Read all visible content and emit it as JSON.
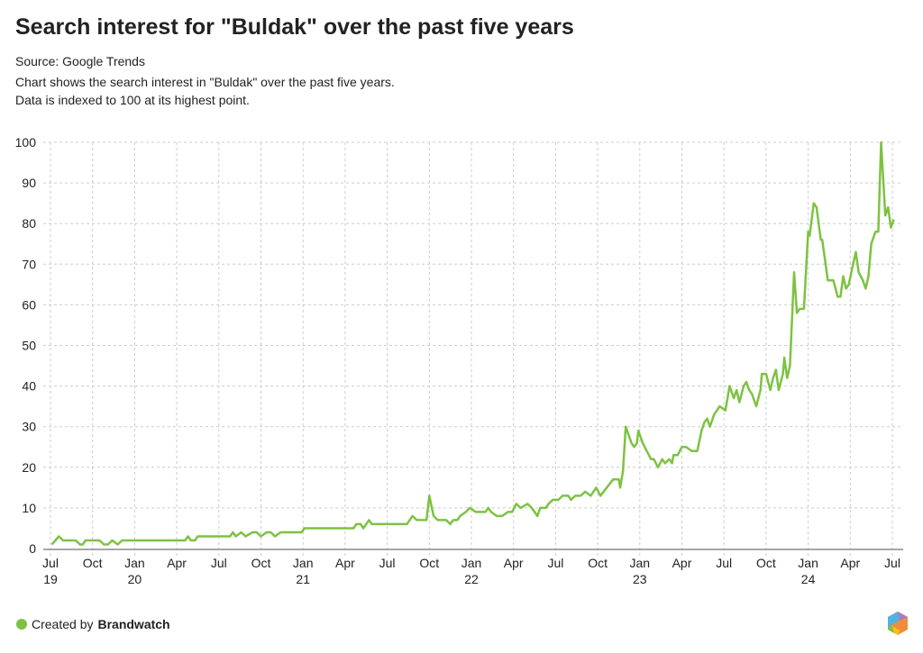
{
  "title": "Search interest for \"Buldak\" over the past five years",
  "source": "Source: Google Trends",
  "description_line1": "Chart shows the search interest in \"Buldak\" over the past five years.",
  "description_line2": "Data is indexed to 100 at its highest point.",
  "footer": {
    "created_by": "Created by",
    "brand": "Brandwatch"
  },
  "colors": {
    "line": "#7dc242",
    "grid": "#cccccc"
  },
  "chart_data": {
    "type": "line",
    "title": "Search interest for \"Buldak\" over the past five years",
    "xlabel": "",
    "ylabel": "",
    "x_unit": "months since Jul 2019",
    "xlim": [
      0,
      60
    ],
    "ylim": [
      0,
      100
    ],
    "grid": true,
    "yticks": [
      0,
      10,
      20,
      30,
      40,
      50,
      60,
      70,
      80,
      90,
      100
    ],
    "xticks": [
      {
        "m": 0,
        "label": "Jul",
        "year": "19"
      },
      {
        "m": 3,
        "label": "Oct"
      },
      {
        "m": 6,
        "label": "Jan",
        "year": "20"
      },
      {
        "m": 9,
        "label": "Apr"
      },
      {
        "m": 12,
        "label": "Jul"
      },
      {
        "m": 15,
        "label": "Oct"
      },
      {
        "m": 18,
        "label": "Jan",
        "year": "21"
      },
      {
        "m": 21,
        "label": "Apr"
      },
      {
        "m": 24,
        "label": "Jul"
      },
      {
        "m": 27,
        "label": "Oct"
      },
      {
        "m": 30,
        "label": "Jan",
        "year": "22"
      },
      {
        "m": 33,
        "label": "Apr"
      },
      {
        "m": 36,
        "label": "Jul"
      },
      {
        "m": 39,
        "label": "Oct"
      },
      {
        "m": 42,
        "label": "Jan",
        "year": "23"
      },
      {
        "m": 45,
        "label": "Apr"
      },
      {
        "m": 48,
        "label": "Jul"
      },
      {
        "m": 51,
        "label": "Oct"
      },
      {
        "m": 54,
        "label": "Jan",
        "year": "24"
      },
      {
        "m": 57,
        "label": "Apr"
      },
      {
        "m": 60,
        "label": "Jul"
      }
    ],
    "series": [
      {
        "name": "Buldak",
        "points": [
          [
            0.1,
            1
          ],
          [
            0.6,
            3
          ],
          [
            0.9,
            2
          ],
          [
            1.8,
            2
          ],
          [
            2.1,
            1
          ],
          [
            2.3,
            1
          ],
          [
            2.5,
            2
          ],
          [
            3.5,
            2
          ],
          [
            3.8,
            1
          ],
          [
            4.1,
            1
          ],
          [
            4.4,
            2
          ],
          [
            4.8,
            1
          ],
          [
            5.1,
            2
          ],
          [
            9.6,
            2
          ],
          [
            9.8,
            3
          ],
          [
            10.0,
            2
          ],
          [
            10.3,
            2
          ],
          [
            10.5,
            3
          ],
          [
            12.8,
            3
          ],
          [
            13.0,
            4
          ],
          [
            13.2,
            3
          ],
          [
            13.6,
            4
          ],
          [
            13.9,
            3
          ],
          [
            14.4,
            4
          ],
          [
            14.7,
            4
          ],
          [
            15.0,
            3
          ],
          [
            15.4,
            4
          ],
          [
            15.7,
            4
          ],
          [
            16.0,
            3
          ],
          [
            16.4,
            4
          ],
          [
            17.9,
            4
          ],
          [
            18.1,
            5
          ],
          [
            21.6,
            5
          ],
          [
            21.8,
            6
          ],
          [
            22.1,
            6
          ],
          [
            22.3,
            5
          ],
          [
            22.7,
            7
          ],
          [
            22.9,
            6
          ],
          [
            25.4,
            6
          ],
          [
            25.8,
            8
          ],
          [
            26.1,
            7
          ],
          [
            26.8,
            7
          ],
          [
            27.0,
            13
          ],
          [
            27.3,
            8
          ],
          [
            27.6,
            7
          ],
          [
            28.2,
            7
          ],
          [
            28.5,
            6
          ],
          [
            28.7,
            7
          ],
          [
            29.0,
            7
          ],
          [
            29.2,
            8
          ],
          [
            29.6,
            9
          ],
          [
            29.9,
            10
          ],
          [
            30.3,
            9
          ],
          [
            31.0,
            9
          ],
          [
            31.2,
            10
          ],
          [
            31.4,
            9
          ],
          [
            31.8,
            8
          ],
          [
            32.2,
            8
          ],
          [
            32.6,
            9
          ],
          [
            32.9,
            9
          ],
          [
            33.2,
            11
          ],
          [
            33.5,
            10
          ],
          [
            34.0,
            11
          ],
          [
            34.3,
            10
          ],
          [
            34.7,
            8
          ],
          [
            34.9,
            10
          ],
          [
            35.3,
            10
          ],
          [
            35.5,
            11
          ],
          [
            35.8,
            12
          ],
          [
            36.2,
            12
          ],
          [
            36.5,
            13
          ],
          [
            36.9,
            13
          ],
          [
            37.1,
            12
          ],
          [
            37.4,
            13
          ],
          [
            37.8,
            13
          ],
          [
            38.1,
            14
          ],
          [
            38.5,
            13
          ],
          [
            38.9,
            15
          ],
          [
            39.2,
            13
          ],
          [
            40.1,
            17
          ],
          [
            40.5,
            17
          ],
          [
            40.6,
            15
          ],
          [
            40.8,
            19
          ],
          [
            41.0,
            30
          ],
          [
            41.4,
            26
          ],
          [
            41.6,
            25
          ],
          [
            41.8,
            26
          ],
          [
            41.9,
            29
          ],
          [
            42.2,
            26
          ],
          [
            42.5,
            24
          ],
          [
            42.8,
            22
          ],
          [
            43.0,
            22
          ],
          [
            43.3,
            20
          ],
          [
            43.6,
            22
          ],
          [
            43.8,
            21
          ],
          [
            44.1,
            22
          ],
          [
            44.3,
            21
          ],
          [
            44.4,
            23
          ],
          [
            44.7,
            23
          ],
          [
            45.0,
            25
          ],
          [
            45.3,
            25
          ],
          [
            45.7,
            24
          ],
          [
            46.1,
            24
          ],
          [
            46.4,
            29
          ],
          [
            46.6,
            31
          ],
          [
            46.8,
            32
          ],
          [
            47.0,
            30
          ],
          [
            47.3,
            33
          ],
          [
            47.7,
            35
          ],
          [
            48.1,
            34
          ],
          [
            48.4,
            40
          ],
          [
            48.7,
            37
          ],
          [
            48.9,
            39
          ],
          [
            49.1,
            36
          ],
          [
            49.4,
            40
          ],
          [
            49.6,
            41
          ],
          [
            49.8,
            39
          ],
          [
            50.0,
            38
          ],
          [
            50.3,
            35
          ],
          [
            50.6,
            39
          ],
          [
            50.7,
            43
          ],
          [
            51.0,
            43
          ],
          [
            51.3,
            39
          ],
          [
            51.5,
            42
          ],
          [
            51.7,
            44
          ],
          [
            51.9,
            39
          ],
          [
            52.2,
            43
          ],
          [
            52.3,
            47
          ],
          [
            52.5,
            42
          ],
          [
            52.7,
            45
          ],
          [
            53.0,
            68
          ],
          [
            53.2,
            58
          ],
          [
            53.4,
            59
          ],
          [
            53.7,
            59
          ],
          [
            54.0,
            78
          ],
          [
            54.1,
            77
          ],
          [
            54.4,
            85
          ],
          [
            54.6,
            84
          ],
          [
            54.9,
            76
          ],
          [
            55.0,
            76
          ],
          [
            55.4,
            66
          ],
          [
            55.8,
            66
          ],
          [
            56.1,
            62
          ],
          [
            56.3,
            62
          ],
          [
            56.5,
            67
          ],
          [
            56.7,
            64
          ],
          [
            56.9,
            65
          ],
          [
            57.2,
            70
          ],
          [
            57.4,
            73
          ],
          [
            57.6,
            68
          ],
          [
            57.9,
            66
          ],
          [
            58.1,
            64
          ],
          [
            58.3,
            67
          ],
          [
            58.5,
            75
          ],
          [
            58.8,
            78
          ],
          [
            59.0,
            78
          ],
          [
            59.2,
            100
          ],
          [
            59.5,
            82
          ],
          [
            59.7,
            84
          ],
          [
            59.9,
            79
          ],
          [
            60.1,
            81
          ]
        ]
      }
    ]
  }
}
